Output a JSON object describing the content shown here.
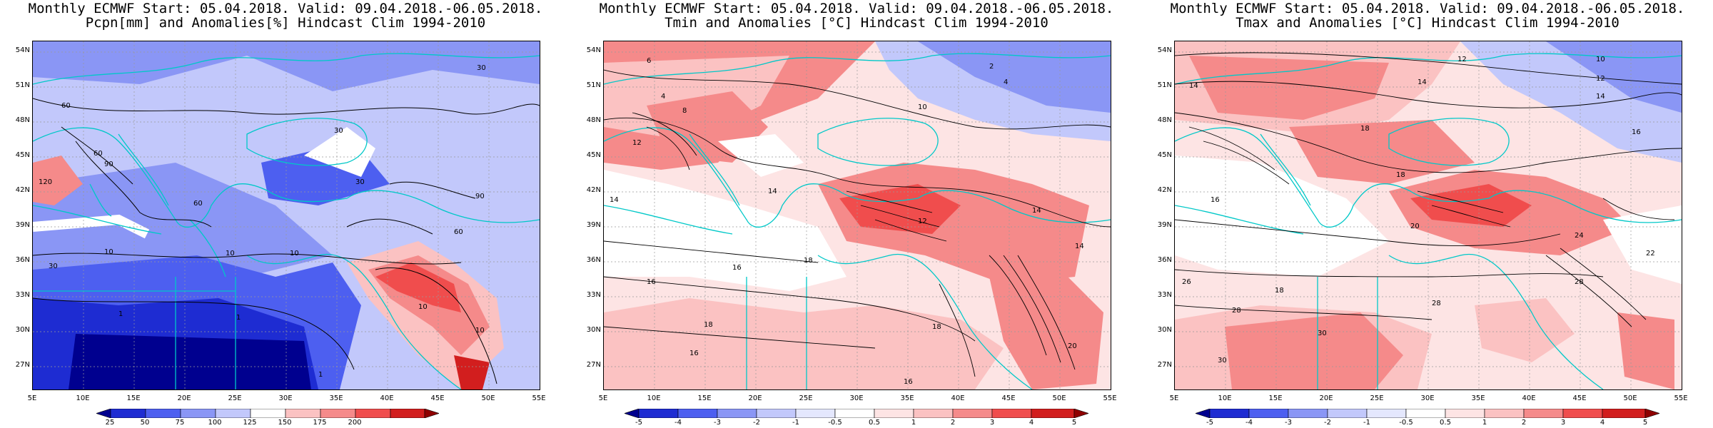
{
  "panels": [
    {
      "id": "precip",
      "title_line1": "Monthly ECMWF Start: 05.04.2018. Valid: 09.04.2018.-06.05.2018.",
      "title_line2": "Pcpn[mm] and Anomalies[%] Hindcast Clim 1994-2010",
      "colorbar": {
        "labels": [
          "25",
          "50",
          "75",
          "100",
          "125",
          "150",
          "175",
          "200"
        ],
        "colors": [
          "#00008f",
          "#1e2cd2",
          "#4d5ff0",
          "#8a96f5",
          "#c2c8fb",
          "#ffffff",
          "#fbc2c2",
          "#f58a8a",
          "#f04d4d",
          "#d21e1e",
          "#8f0000"
        ]
      },
      "contour_labels": [
        "30",
        "60",
        "60",
        "120",
        "90",
        "30",
        "30",
        "60",
        "90",
        "60",
        "10",
        "10",
        "10",
        "10",
        "1",
        "1",
        "1",
        "10",
        "30"
      ]
    },
    {
      "id": "tmin",
      "title_line1": "Monthly ECMWF Start: 05.04.2018. Valid: 09.04.2018.-06.05.2018.",
      "title_line2": "Tmin and Anomalies [°C] Hindcast Clim 1994-2010",
      "colorbar": {
        "labels": [
          "-5",
          "-4",
          "-3",
          "-2",
          "-1",
          "-0.5",
          "0.5",
          "1",
          "2",
          "3",
          "4",
          "5"
        ],
        "colors": [
          "#00008f",
          "#1e2cd2",
          "#4d5ff0",
          "#8a96f5",
          "#c2c8fb",
          "#e4e7fd",
          "#ffffff",
          "#fde4e4",
          "#fbc2c2",
          "#f58a8a",
          "#f04d4d",
          "#d21e1e",
          "#8f0000"
        ]
      },
      "contour_labels": [
        "6",
        "2",
        "4",
        "4",
        "8",
        "10",
        "12",
        "14",
        "14",
        "12",
        "16",
        "16",
        "18",
        "18",
        "16",
        "18",
        "20",
        "14",
        "14",
        "16"
      ]
    },
    {
      "id": "tmax",
      "title_line1": "Monthly ECMWF Start: 05.04.2018. Valid: 09.04.2018.-06.05.2018.",
      "title_line2": "Tmax and Anomalies [°C] Hindcast Clim 1994-2010",
      "colorbar": {
        "labels": [
          "-5",
          "-4",
          "-3",
          "-2",
          "-1",
          "-0.5",
          "0.5",
          "1",
          "2",
          "3",
          "4",
          "5"
        ],
        "colors": [
          "#00008f",
          "#1e2cd2",
          "#4d5ff0",
          "#8a96f5",
          "#c2c8fb",
          "#e4e7fd",
          "#ffffff",
          "#fde4e4",
          "#fbc2c2",
          "#f58a8a",
          "#f04d4d",
          "#d21e1e",
          "#8f0000"
        ]
      },
      "contour_labels": [
        "12",
        "14",
        "10",
        "12",
        "14",
        "14",
        "16",
        "18",
        "16",
        "20",
        "18",
        "18",
        "22",
        "26",
        "28",
        "30",
        "28",
        "24",
        "28",
        "30"
      ]
    }
  ],
  "axes": {
    "lat_labels": [
      "54N",
      "51N",
      "48N",
      "45N",
      "42N",
      "39N",
      "36N",
      "33N",
      "30N",
      "27N"
    ],
    "lon_labels": [
      "5E",
      "10E",
      "15E",
      "20E",
      "25E",
      "30E",
      "35E",
      "40E",
      "45E",
      "50E",
      "55E"
    ]
  },
  "colors": {
    "coastline": "#00c8c8",
    "contour": "#000000",
    "grid": "#999999"
  }
}
